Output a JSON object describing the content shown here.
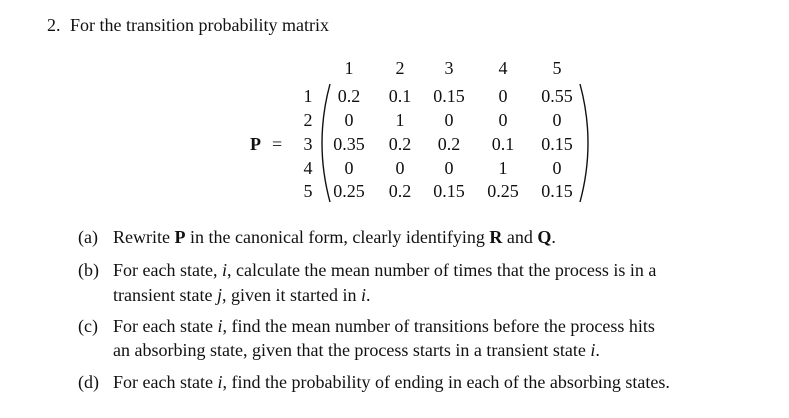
{
  "problem": {
    "number": "2.",
    "intro": "For the transition probability matrix"
  },
  "matrix": {
    "name": "P",
    "relation": "=",
    "col_labels": [
      "1",
      "2",
      "3",
      "4",
      "5"
    ],
    "row_labels": [
      "1",
      "2",
      "3",
      "4",
      "5"
    ],
    "rows": [
      [
        0.2,
        0.1,
        0.15,
        0,
        0.55
      ],
      [
        0,
        1,
        0,
        0,
        0
      ],
      [
        0.35,
        0.2,
        0.2,
        0.1,
        0.15
      ],
      [
        0,
        0,
        0,
        1,
        0
      ],
      [
        0.25,
        0.2,
        0.15,
        0.25,
        0.15
      ]
    ]
  },
  "parts": [
    {
      "label": "(a)",
      "lines": [
        [
          {
            "text": "Rewrite ",
            "style": "normal"
          },
          {
            "text": "P",
            "style": "bold"
          },
          {
            "text": " in the canonical form, clearly identifying ",
            "style": "normal"
          },
          {
            "text": "R",
            "style": "bold"
          },
          {
            "text": " and ",
            "style": "normal"
          },
          {
            "text": "Q",
            "style": "bold"
          },
          {
            "text": ".",
            "style": "normal"
          }
        ]
      ]
    },
    {
      "label": "(b)",
      "lines": [
        [
          {
            "text": "For each state, ",
            "style": "normal"
          },
          {
            "text": "i",
            "style": "italic"
          },
          {
            "text": ", calculate the mean number of times that the process is in a",
            "style": "normal"
          }
        ],
        [
          {
            "text": "transient state ",
            "style": "normal"
          },
          {
            "text": "j",
            "style": "italic"
          },
          {
            "text": ", given it started in ",
            "style": "normal"
          },
          {
            "text": "i",
            "style": "italic"
          },
          {
            "text": ".",
            "style": "normal"
          }
        ]
      ]
    },
    {
      "label": "(c)",
      "lines": [
        [
          {
            "text": "For each state ",
            "style": "normal"
          },
          {
            "text": "i",
            "style": "italic"
          },
          {
            "text": ", find the mean number of transitions before the process hits",
            "style": "normal"
          }
        ],
        [
          {
            "text": "an absorbing state, given that the process starts in a transient state ",
            "style": "normal"
          },
          {
            "text": "i",
            "style": "italic"
          },
          {
            "text": ".",
            "style": "normal"
          }
        ]
      ]
    },
    {
      "label": "(d)",
      "lines": [
        [
          {
            "text": "For each state ",
            "style": "normal"
          },
          {
            "text": "i",
            "style": "italic"
          },
          {
            "text": ", find the probability of ending in each of the absorbing states.",
            "style": "normal"
          }
        ]
      ]
    }
  ]
}
